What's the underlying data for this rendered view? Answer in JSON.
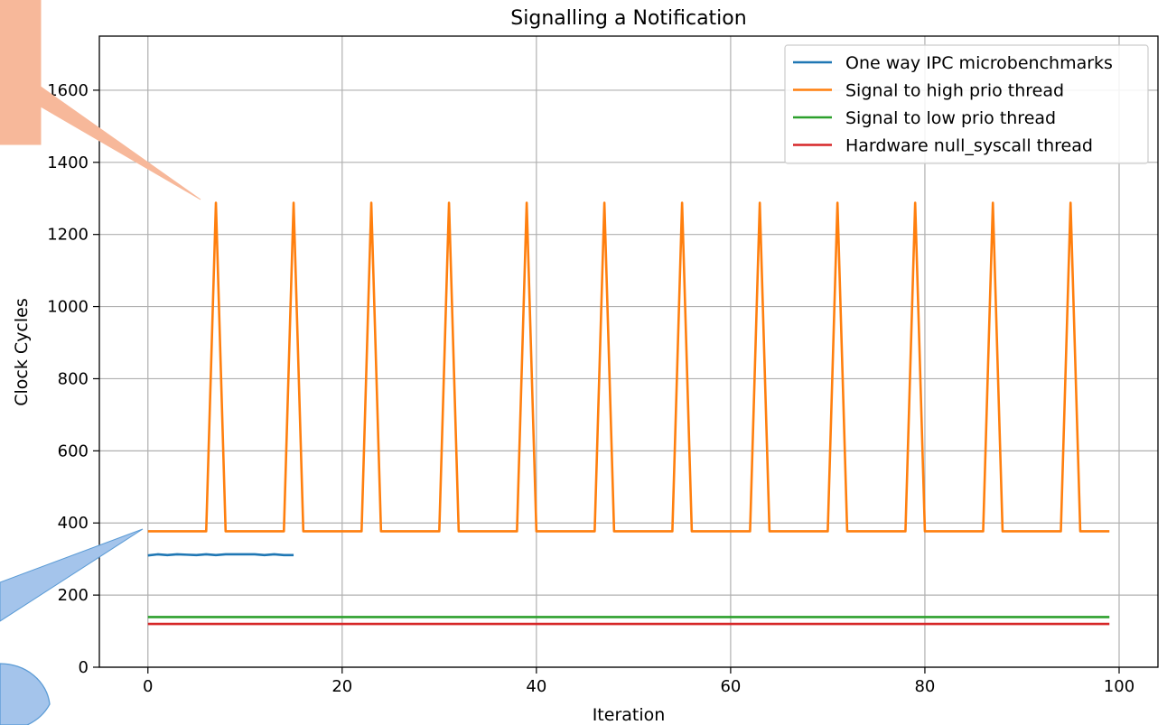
{
  "chart_data": {
    "type": "line",
    "title": "Signalling a Notification",
    "xlabel": "Iteration",
    "ylabel": "Clock Cycles",
    "xlim": [
      -5,
      104
    ],
    "ylim": [
      0,
      1750
    ],
    "xticks": [
      0,
      20,
      40,
      60,
      80,
      100
    ],
    "yticks": [
      0,
      200,
      400,
      600,
      800,
      1000,
      1200,
      1400,
      1600
    ],
    "xtick_labels": [
      "0",
      "20",
      "40",
      "60",
      "80",
      "100"
    ],
    "ytick_labels": [
      "0",
      "200",
      "400",
      "600",
      "800",
      "1000",
      "1200",
      "1400",
      "1600"
    ],
    "grid": true,
    "legend_position": "top-right",
    "series": [
      {
        "name": "One way IPC microbenchmarks",
        "color": "#1f77b4",
        "x": [
          0,
          1,
          2,
          3,
          4,
          5,
          6,
          7,
          8,
          9,
          10,
          11,
          12,
          13,
          14,
          15
        ],
        "y": [
          310,
          313,
          311,
          313,
          312,
          311,
          313,
          311,
          313,
          313,
          313,
          313,
          311,
          313,
          311,
          311
        ]
      },
      {
        "name": "Signal to high prio thread",
        "color": "#ff7f0e",
        "pattern": {
          "x_start": 0,
          "x_end": 99,
          "base": 377,
          "peak": 1288,
          "peak_x": [
            7,
            15,
            23,
            31,
            39,
            47,
            55,
            63,
            71,
            79,
            87,
            95
          ]
        }
      },
      {
        "name": "Signal to low prio thread",
        "color": "#2ca02c",
        "x": [
          0,
          99
        ],
        "y": [
          139,
          139
        ]
      },
      {
        "name": "Hardware null_syscall thread",
        "color": "#d62728",
        "x": [
          0,
          99
        ],
        "y": [
          120,
          120
        ]
      }
    ]
  },
  "annotations": [
    {
      "shape": "callout",
      "fill": "#f7b89a",
      "stroke": "#f7b89a"
    },
    {
      "shape": "callout-ellipse",
      "fill": "#a4c4eb",
      "stroke": "#5b9bd5"
    }
  ]
}
